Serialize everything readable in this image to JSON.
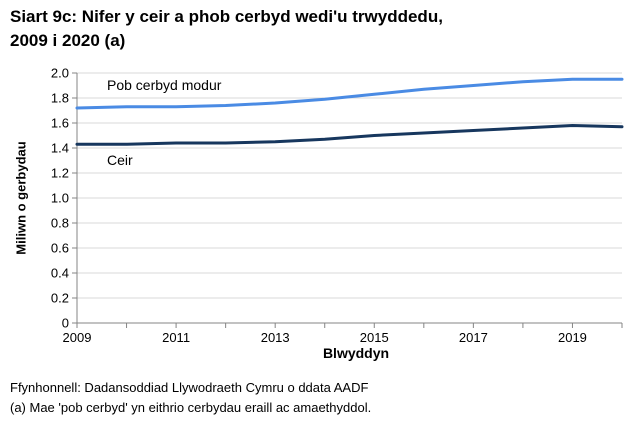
{
  "title": {
    "line1": "Siart 9c: Nifer y ceir a phob cerbyd wedi'u trwyddedu,",
    "line2": "2009 i 2020 (a)"
  },
  "chart_data": {
    "type": "line",
    "x": [
      2009,
      2010,
      2011,
      2012,
      2013,
      2014,
      2015,
      2016,
      2017,
      2018,
      2019,
      2020
    ],
    "series": [
      {
        "name": "Pob cerbyd modur",
        "color": "#4a8be4",
        "values": [
          1.72,
          1.73,
          1.73,
          1.74,
          1.76,
          1.79,
          1.83,
          1.87,
          1.9,
          1.93,
          1.95,
          1.95
        ]
      },
      {
        "name": "Ceir",
        "color": "#17375e",
        "values": [
          1.43,
          1.43,
          1.44,
          1.44,
          1.45,
          1.47,
          1.5,
          1.52,
          1.54,
          1.56,
          1.58,
          1.57
        ]
      }
    ],
    "title": "Siart 9c: Nifer y ceir a phob cerbyd wedi'u trwyddedu, 2009 i 2020 (a)",
    "xlabel": "Blwyddyn",
    "ylabel": "Miliwn o gerbydau",
    "ylim": [
      0,
      2.0
    ],
    "ytick_step": 0.2,
    "xticks_labeled": [
      2009,
      2011,
      2013,
      2015,
      2017,
      2019
    ],
    "grid": "horizontal",
    "legend_position": "inline-annotations"
  },
  "footnotes": {
    "source": "Ffynhonnell: Dadansoddiad Llywodraeth Cymru o ddata AADF",
    "note": "(a) Mae 'pob cerbyd' yn eithrio cerbydau eraill ac amaethyddol."
  },
  "colors": {
    "gridline": "#d9d9d9",
    "axis": "#848484",
    "text": "#000000",
    "background": "#ffffff"
  }
}
